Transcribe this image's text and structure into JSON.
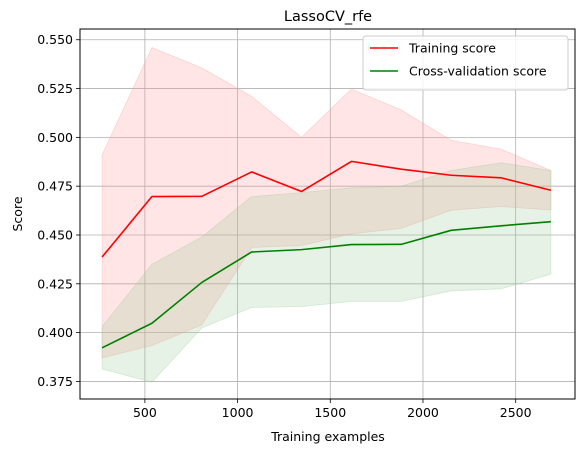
{
  "chart_data": {
    "type": "line",
    "title": "LassoCV_rfe",
    "xlabel": "Training examples",
    "ylabel": "Score",
    "xlim": [
      150,
      2820
    ],
    "ylim": [
      0.366,
      0.5555
    ],
    "x_ticks": [
      500,
      1000,
      1500,
      2000,
      2500
    ],
    "x_tick_labels": [
      "500",
      "1000",
      "1500",
      "2000",
      "2500"
    ],
    "y_ticks": [
      0.375,
      0.4,
      0.425,
      0.45,
      0.475,
      0.5,
      0.525,
      0.55
    ],
    "y_tick_labels": [
      "0.375",
      "0.400",
      "0.425",
      "0.450",
      "0.475",
      "0.500",
      "0.525",
      "0.550"
    ],
    "grid": true,
    "legend_position": "top-right",
    "x": [
      269,
      538,
      807,
      1076,
      1345,
      1614,
      1883,
      2152,
      2421,
      2690
    ],
    "series": [
      {
        "name": "Training score",
        "color": "#ff0000",
        "band_color": "#ff9999",
        "values": [
          0.4387,
          0.4697,
          0.4698,
          0.4823,
          0.4723,
          0.4877,
          0.4837,
          0.4806,
          0.4793,
          0.4729
        ],
        "upper": [
          0.491,
          0.546,
          0.5356,
          0.521,
          0.5,
          0.5248,
          0.514,
          0.4985,
          0.494,
          0.483
        ],
        "lower": [
          0.387,
          0.3934,
          0.404,
          0.4436,
          0.4446,
          0.4506,
          0.4534,
          0.4627,
          0.4646,
          0.4628
        ]
      },
      {
        "name": "Cross-validation score",
        "color": "#008000",
        "band_color": "#99cc99",
        "values": [
          0.3922,
          0.4048,
          0.4257,
          0.4413,
          0.4425,
          0.4451,
          0.4452,
          0.4524,
          0.4547,
          0.4568
        ],
        "upper": [
          0.403,
          0.435,
          0.449,
          0.4697,
          0.4717,
          0.4742,
          0.475,
          0.483,
          0.487,
          0.483
        ],
        "lower": [
          0.3814,
          0.3746,
          0.4024,
          0.4129,
          0.4133,
          0.416,
          0.416,
          0.4214,
          0.4224,
          0.43
        ]
      }
    ]
  }
}
